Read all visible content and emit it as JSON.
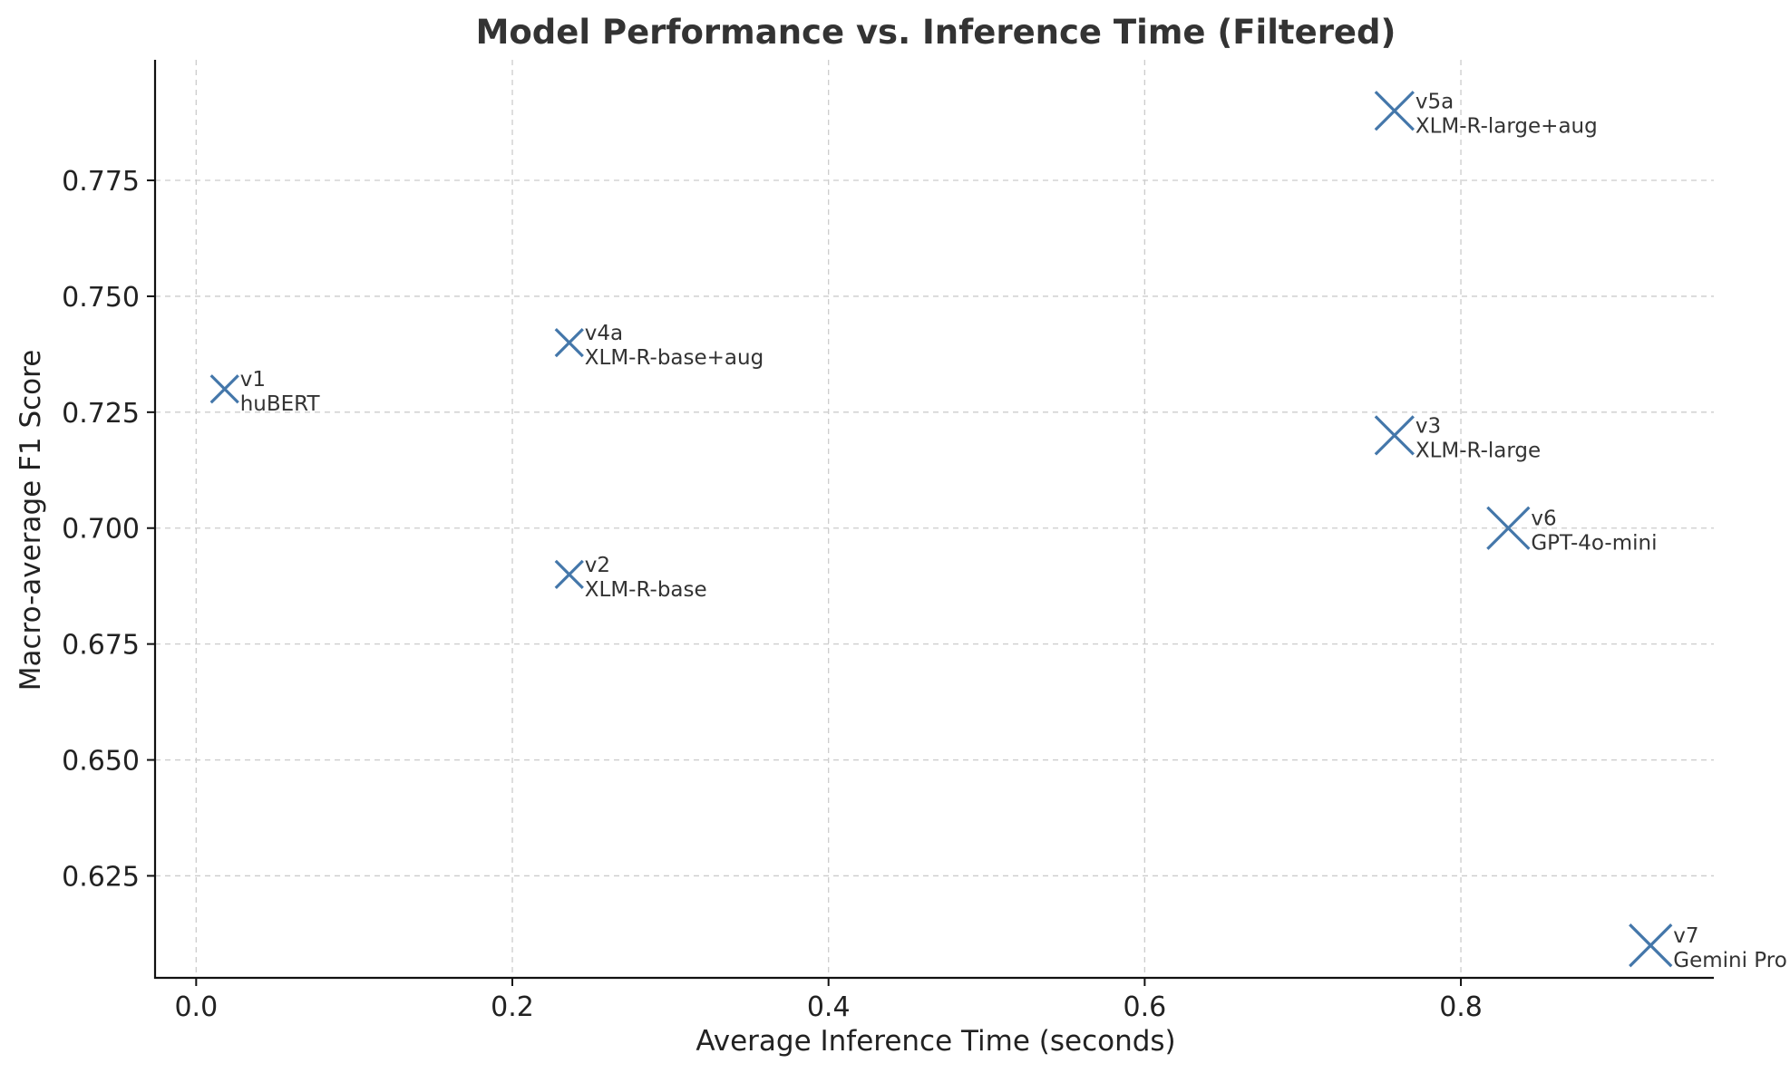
{
  "chart_data": {
    "type": "scatter",
    "title": "Model Performance vs. Inference Time (Filtered)",
    "xlabel": "Average Inference Time (seconds)",
    "ylabel": "Macro-average F1 Score",
    "xlim": [
      -0.026,
      0.96
    ],
    "ylim": [
      0.603,
      0.801
    ],
    "xticks": [
      0.0,
      0.2,
      0.4,
      0.6,
      0.8
    ],
    "xtick_labels": [
      "0.0",
      "0.2",
      "0.4",
      "0.6",
      "0.8"
    ],
    "yticks": [
      0.625,
      0.65,
      0.675,
      0.7,
      0.725,
      0.75,
      0.775
    ],
    "ytick_labels": [
      "0.625",
      "0.650",
      "0.675",
      "0.700",
      "0.725",
      "0.750",
      "0.775"
    ],
    "grid": true,
    "marker": "x",
    "marker_color": "#4477aa",
    "points": [
      {
        "id": "v1",
        "name": "huBERT",
        "x": 0.018,
        "y": 0.73,
        "marker_size": "small"
      },
      {
        "id": "v2",
        "name": "XLM-R-base",
        "x": 0.236,
        "y": 0.69,
        "marker_size": "small"
      },
      {
        "id": "v3",
        "name": "XLM-R-large",
        "x": 0.758,
        "y": 0.72,
        "marker_size": "medium"
      },
      {
        "id": "v4a",
        "name": "XLM-R-base+aug",
        "x": 0.236,
        "y": 0.74,
        "marker_size": "small"
      },
      {
        "id": "v5a",
        "name": "XLM-R-large+aug",
        "x": 0.758,
        "y": 0.79,
        "marker_size": "medium"
      },
      {
        "id": "v6",
        "name": "GPT-4o-mini",
        "x": 0.83,
        "y": 0.7,
        "marker_size": "large"
      },
      {
        "id": "v7",
        "name": "Gemini Pro",
        "x": 0.92,
        "y": 0.61,
        "marker_size": "large"
      }
    ]
  }
}
